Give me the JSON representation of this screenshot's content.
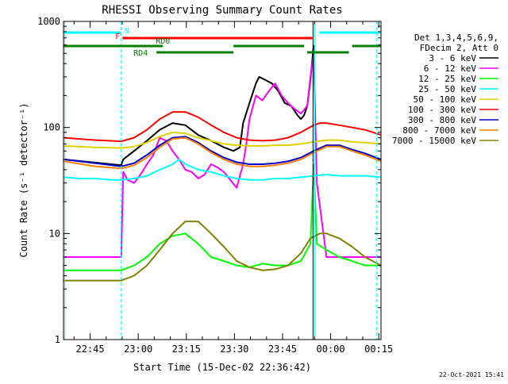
{
  "chart_data": {
    "type": "line",
    "title": "RHESSI Observing Summary Count Rates",
    "xlabel": "Start Time (15-Dec-02 22:36:42)",
    "ylabel": "Count Rate (s⁻¹ detector⁻¹)",
    "yscale": "log",
    "ylim": [
      1,
      1000
    ],
    "xlim_minutes": [
      0,
      99
    ],
    "yticks": [
      {
        "value": 1,
        "label": "1"
      },
      {
        "value": 10,
        "label": "10"
      },
      {
        "value": 100,
        "label": "100"
      },
      {
        "value": 1000,
        "label": "1000"
      }
    ],
    "xticks": [
      {
        "minutes": 8.3,
        "label": "22:45"
      },
      {
        "minutes": 23.3,
        "label": "23:00"
      },
      {
        "minutes": 38.3,
        "label": "23:15"
      },
      {
        "minutes": 53.3,
        "label": "23:30"
      },
      {
        "minutes": 68.3,
        "label": "23:45"
      },
      {
        "minutes": 83.3,
        "label": "00:00"
      },
      {
        "minutes": 98.3,
        "label": "00:15"
      }
    ],
    "legend_header": [
      "Det 1,3,4,5,6,9,",
      "FDecim 2, Att 0"
    ],
    "legend_position": "right",
    "series": [
      {
        "name": "3 - 6 keV",
        "color": "#000000",
        "x": [
          0,
          18.0,
          18.6,
          22,
          26,
          30,
          34,
          38,
          42,
          46,
          50,
          53,
          55,
          56,
          58,
          60,
          61,
          63,
          65,
          67,
          69,
          71,
          73,
          74,
          75,
          76,
          77,
          78
        ],
        "y": [
          50,
          44,
          50,
          60,
          75,
          95,
          110,
          105,
          85,
          75,
          65,
          60,
          65,
          110,
          170,
          260,
          300,
          280,
          260,
          220,
          170,
          160,
          130,
          120,
          130,
          160,
          280,
          600
        ]
      },
      {
        "name": "6 - 12 keV",
        "color": "#ff00ff",
        "x": [
          0,
          18.0,
          18.6,
          20,
          22,
          24,
          26,
          28,
          30,
          32,
          34,
          36,
          38,
          40,
          42,
          44,
          46,
          48,
          50,
          52,
          54,
          55,
          56,
          57,
          58,
          60,
          62,
          64,
          66,
          68,
          70,
          72,
          74,
          76,
          77,
          78,
          79,
          82,
          86,
          90,
          94,
          97,
          99
        ],
        "y": [
          6,
          6,
          38,
          32,
          30,
          36,
          45,
          55,
          80,
          75,
          60,
          50,
          40,
          38,
          33,
          36,
          45,
          42,
          38,
          32,
          27,
          35,
          45,
          70,
          120,
          200,
          180,
          220,
          260,
          200,
          170,
          150,
          135,
          160,
          300,
          500,
          30,
          6,
          6,
          6,
          6,
          6,
          6
        ]
      },
      {
        "name": "12 - 25 keV",
        "color": "#00ff00",
        "x": [
          0,
          18,
          22,
          26,
          30,
          34,
          38,
          42,
          46,
          50,
          54,
          58,
          62,
          66,
          70,
          74,
          77,
          78,
          79,
          82,
          86,
          90,
          94,
          99
        ],
        "y": [
          4.5,
          4.5,
          5,
          6,
          8,
          9.5,
          10,
          8,
          6,
          5.5,
          5,
          4.8,
          5.2,
          5,
          5,
          5.5,
          8,
          45,
          8,
          7,
          6,
          5.5,
          5,
          5
        ]
      },
      {
        "name": "25 - 50 keV",
        "color": "#00ffff",
        "x": [
          0,
          5,
          10,
          15,
          18,
          22,
          26,
          30,
          34,
          36,
          38,
          42,
          46,
          50,
          54,
          58,
          62,
          66,
          70,
          74,
          78,
          82,
          86,
          90,
          94,
          99
        ],
        "y": [
          34,
          33,
          33,
          32,
          32,
          33,
          35,
          40,
          45,
          50,
          45,
          40,
          38,
          35,
          33,
          32,
          32,
          33,
          33,
          34,
          35,
          36,
          35,
          35,
          35,
          34
        ]
      },
      {
        "name": "50 - 100 keV",
        "color": "#e0d000",
        "x": [
          0,
          10,
          18,
          22,
          26,
          30,
          34,
          38,
          42,
          46,
          50,
          54,
          58,
          62,
          66,
          70,
          74,
          78,
          82,
          86,
          90,
          94,
          99
        ],
        "y": [
          67,
          65,
          64,
          66,
          72,
          82,
          90,
          88,
          80,
          75,
          70,
          68,
          67,
          67,
          68,
          68,
          70,
          73,
          76,
          76,
          73,
          72,
          70
        ]
      },
      {
        "name": "100 - 300 keV",
        "color": "#ff0000",
        "x": [
          0,
          10,
          18,
          22,
          26,
          30,
          34,
          38,
          42,
          46,
          50,
          54,
          58,
          62,
          66,
          70,
          74,
          78,
          80,
          82,
          86,
          90,
          94,
          99
        ],
        "y": [
          80,
          76,
          74,
          80,
          95,
          120,
          140,
          140,
          125,
          105,
          90,
          80,
          76,
          75,
          76,
          80,
          90,
          105,
          110,
          110,
          105,
          100,
          95,
          85
        ]
      },
      {
        "name": "300 - 800 keV",
        "color": "#0000cc",
        "x": [
          0,
          10,
          18,
          22,
          26,
          30,
          34,
          38,
          42,
          46,
          50,
          54,
          58,
          62,
          66,
          70,
          74,
          78,
          82,
          86,
          90,
          94,
          99
        ],
        "y": [
          50,
          46,
          43,
          46,
          55,
          68,
          80,
          82,
          72,
          60,
          52,
          47,
          45,
          45,
          46,
          48,
          52,
          60,
          68,
          68,
          62,
          57,
          50
        ]
      },
      {
        "name": "800 - 7000 keV",
        "color": "#ff8000",
        "x": [
          0,
          10,
          18,
          22,
          26,
          30,
          34,
          38,
          42,
          46,
          50,
          54,
          58,
          62,
          66,
          70,
          74,
          78,
          82,
          86,
          90,
          94,
          99
        ],
        "y": [
          48,
          43,
          41,
          44,
          52,
          65,
          78,
          80,
          70,
          58,
          50,
          45,
          43,
          43,
          44,
          46,
          50,
          58,
          66,
          66,
          60,
          55,
          48
        ]
      },
      {
        "name": "7000 - 15000 keV",
        "color": "#808000",
        "x": [
          0,
          10,
          18,
          22,
          26,
          30,
          34,
          38,
          42,
          46,
          50,
          54,
          58,
          62,
          66,
          70,
          74,
          77,
          80,
          82,
          86,
          90,
          94,
          99
        ],
        "y": [
          3.6,
          3.6,
          3.6,
          4,
          5,
          7,
          10,
          13,
          13,
          10,
          7.5,
          5.5,
          4.8,
          4.5,
          4.6,
          5,
          6.5,
          9,
          10,
          10,
          9,
          7.5,
          6,
          5
        ]
      }
    ],
    "flags": [
      {
        "label": "N",
        "color": "#00ffff",
        "segments": [
          [
            0,
            17.8
          ],
          [
            79.8,
            99
          ]
        ]
      },
      {
        "label": "F",
        "color": "#ff0000",
        "segments": [
          [
            18.4,
            77.6
          ]
        ]
      },
      {
        "label": "RD0",
        "color": "#008000",
        "segments": [
          [
            0,
            31
          ],
          [
            53,
            75
          ],
          [
            90,
            99
          ]
        ]
      },
      {
        "label": "RD4",
        "color": "#008000",
        "segments": [
          [
            29,
            53
          ],
          [
            76,
            89
          ]
        ]
      }
    ],
    "event_lines": [
      {
        "minutes": 0.4,
        "color": "#00ffff",
        "style": "solid"
      },
      {
        "minutes": 17.9,
        "color": "#00ffff",
        "style": "dashed"
      },
      {
        "minutes": 77.8,
        "color": "#000000",
        "style": "solid"
      },
      {
        "minutes": 78.3,
        "color": "#00ffff",
        "style": "solid"
      },
      {
        "minutes": 97.6,
        "color": "#00ffff",
        "style": "dashed"
      }
    ]
  },
  "footer": {
    "timestamp": "22-Oct-2021 15:41"
  }
}
